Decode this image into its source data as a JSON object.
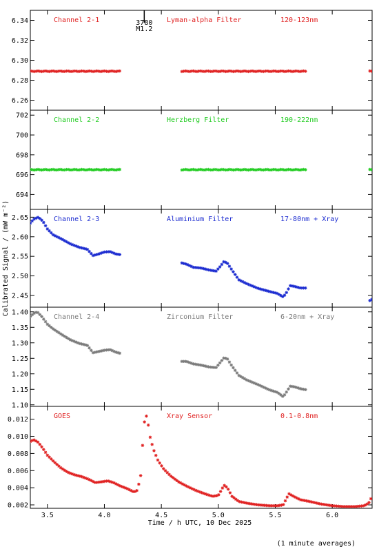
{
  "ylabel": "Calibrated Signal / (mW m⁻²)",
  "xlabel": "Time / h UTC, 10 Dec 2025",
  "footer_note": "(1 minute averages)",
  "flare_marker": {
    "number": "3780",
    "class": "M1.2",
    "time": 4.35
  },
  "xlim": [
    3.35,
    6.35
  ],
  "x_ticks": [
    {
      "v": 3.5,
      "label": "3.5"
    },
    {
      "v": 4.0,
      "label": "4.0"
    },
    {
      "v": 4.5,
      "label": "4.5"
    },
    {
      "v": 5.0,
      "label": "5.0"
    },
    {
      "v": 5.5,
      "label": "5.5"
    },
    {
      "v": 6.0,
      "label": "6.0"
    }
  ],
  "chart_data": [
    {
      "type": "scatter",
      "channel": "Channel 2-1",
      "filter": "Lyman-alpha Filter",
      "band": "120-123nm",
      "color": "#e02020",
      "ylim": [
        6.25,
        6.35
      ],
      "y_ticks": [
        "6.26",
        "6.28",
        "6.30",
        "6.32",
        "6.34"
      ],
      "y_tick_values": [
        6.26,
        6.28,
        6.3,
        6.32,
        6.34
      ],
      "points": [
        [
          3.35,
          6.289
        ],
        [
          4.15,
          6.289
        ],
        [
          4.68,
          6.289
        ],
        [
          5.78,
          6.289
        ],
        [
          6.35,
          6.289
        ]
      ],
      "segments": [
        [
          3.35,
          4.15
        ],
        [
          4.68,
          5.78
        ],
        [
          6.33,
          6.35
        ]
      ],
      "shape": "flat"
    },
    {
      "type": "scatter",
      "channel": "Channel 2-2",
      "filter": "Herzberg Filter",
      "band": "190-222nm",
      "color": "#22cc22",
      "ylim": [
        692.5,
        702.5
      ],
      "y_ticks": [
        "694",
        "696",
        "698",
        "700",
        "702"
      ],
      "y_tick_values": [
        694,
        696,
        698,
        700,
        702
      ],
      "points": [
        [
          3.35,
          696.5
        ],
        [
          4.15,
          696.5
        ],
        [
          4.68,
          696.5
        ],
        [
          5.78,
          696.5
        ],
        [
          6.35,
          696.5
        ]
      ],
      "segments": [
        [
          3.35,
          4.15
        ],
        [
          4.68,
          5.78
        ],
        [
          6.33,
          6.35
        ]
      ],
      "shape": "flat"
    },
    {
      "type": "scatter",
      "channel": "Channel 2-3",
      "filter": "Aluminium Filter",
      "band": "17-80nm + Xray",
      "color": "#1a2ad0",
      "ylim": [
        2.42,
        2.67
      ],
      "y_ticks": [
        "2.45",
        "2.50",
        "2.55",
        "2.60",
        "2.65"
      ],
      "y_tick_values": [
        2.45,
        2.5,
        2.55,
        2.6,
        2.65
      ],
      "points": [
        [
          3.35,
          2.635
        ],
        [
          3.38,
          2.645
        ],
        [
          3.42,
          2.65
        ],
        [
          3.46,
          2.64
        ],
        [
          3.5,
          2.62
        ],
        [
          3.55,
          2.605
        ],
        [
          3.62,
          2.595
        ],
        [
          3.7,
          2.582
        ],
        [
          3.78,
          2.573
        ],
        [
          3.85,
          2.568
        ],
        [
          3.9,
          2.552
        ],
        [
          3.95,
          2.556
        ],
        [
          4.0,
          2.561
        ],
        [
          4.05,
          2.562
        ],
        [
          4.1,
          2.556
        ],
        [
          4.15,
          2.554
        ],
        [
          4.68,
          2.533
        ],
        [
          4.72,
          2.53
        ],
        [
          4.78,
          2.522
        ],
        [
          4.85,
          2.52
        ],
        [
          4.92,
          2.515
        ],
        [
          4.98,
          2.512
        ],
        [
          5.02,
          2.525
        ],
        [
          5.05,
          2.537
        ],
        [
          5.08,
          2.532
        ],
        [
          5.12,
          2.515
        ],
        [
          5.18,
          2.49
        ],
        [
          5.25,
          2.48
        ],
        [
          5.35,
          2.468
        ],
        [
          5.45,
          2.46
        ],
        [
          5.52,
          2.455
        ],
        [
          5.57,
          2.446
        ],
        [
          5.6,
          2.458
        ],
        [
          5.63,
          2.475
        ],
        [
          5.67,
          2.473
        ],
        [
          5.72,
          2.469
        ],
        [
          5.78,
          2.469
        ],
        [
          6.33,
          2.437
        ],
        [
          6.35,
          2.44
        ]
      ]
    },
    {
      "type": "scatter",
      "channel": "Channel 2-4",
      "filter": "Zirconium Filter",
      "band": "6-20nm + Xray",
      "color": "#7a7a7a",
      "ylim": [
        1.095,
        1.415
      ],
      "y_ticks": [
        "1.10",
        "1.15",
        "1.20",
        "1.25",
        "1.30",
        "1.35",
        "1.40"
      ],
      "y_tick_values": [
        1.1,
        1.15,
        1.2,
        1.25,
        1.3,
        1.35,
        1.4
      ],
      "points": [
        [
          3.35,
          1.385
        ],
        [
          3.38,
          1.395
        ],
        [
          3.41,
          1.4
        ],
        [
          3.45,
          1.385
        ],
        [
          3.5,
          1.36
        ],
        [
          3.55,
          1.345
        ],
        [
          3.62,
          1.328
        ],
        [
          3.7,
          1.31
        ],
        [
          3.78,
          1.298
        ],
        [
          3.85,
          1.292
        ],
        [
          3.9,
          1.268
        ],
        [
          3.95,
          1.272
        ],
        [
          4.0,
          1.276
        ],
        [
          4.05,
          1.278
        ],
        [
          4.1,
          1.27
        ],
        [
          4.15,
          1.265
        ],
        [
          4.68,
          1.24
        ],
        [
          4.72,
          1.24
        ],
        [
          4.78,
          1.232
        ],
        [
          4.85,
          1.228
        ],
        [
          4.92,
          1.222
        ],
        [
          4.98,
          1.22
        ],
        [
          5.02,
          1.238
        ],
        [
          5.05,
          1.252
        ],
        [
          5.08,
          1.248
        ],
        [
          5.12,
          1.225
        ],
        [
          5.18,
          1.195
        ],
        [
          5.25,
          1.18
        ],
        [
          5.35,
          1.165
        ],
        [
          5.45,
          1.148
        ],
        [
          5.52,
          1.14
        ],
        [
          5.57,
          1.126
        ],
        [
          5.6,
          1.142
        ],
        [
          5.63,
          1.16
        ],
        [
          5.67,
          1.158
        ],
        [
          5.72,
          1.152
        ],
        [
          5.78,
          1.148
        ]
      ]
    },
    {
      "type": "scatter",
      "channel": "GOES",
      "filter": "Xray Sensor",
      "band": "0.1-0.8nm",
      "color": "#e02020",
      "ylim": [
        0.0016,
        0.0135
      ],
      "y_ticks": [
        "0.002",
        "0.004",
        "0.006",
        "0.008",
        "0.010",
        "0.012"
      ],
      "y_tick_values": [
        0.002,
        0.004,
        0.006,
        0.008,
        0.01,
        0.012
      ],
      "points": [
        [
          3.35,
          0.0094
        ],
        [
          3.38,
          0.0096
        ],
        [
          3.42,
          0.0093
        ],
        [
          3.46,
          0.0086
        ],
        [
          3.5,
          0.0078
        ],
        [
          3.56,
          0.007
        ],
        [
          3.62,
          0.0063
        ],
        [
          3.68,
          0.0058
        ],
        [
          3.74,
          0.0055
        ],
        [
          3.8,
          0.0053
        ],
        [
          3.86,
          0.005
        ],
        [
          3.92,
          0.0046
        ],
        [
          3.98,
          0.0047
        ],
        [
          4.03,
          0.0048
        ],
        [
          4.08,
          0.0046
        ],
        [
          4.14,
          0.0042
        ],
        [
          4.2,
          0.0039
        ],
        [
          4.26,
          0.0035
        ],
        [
          4.29,
          0.0037
        ],
        [
          4.32,
          0.0055
        ],
        [
          4.34,
          0.01
        ],
        [
          4.36,
          0.0128
        ],
        [
          4.38,
          0.0118
        ],
        [
          4.4,
          0.01
        ],
        [
          4.43,
          0.0085
        ],
        [
          4.47,
          0.0072
        ],
        [
          4.52,
          0.0062
        ],
        [
          4.58,
          0.0054
        ],
        [
          4.65,
          0.0047
        ],
        [
          4.72,
          0.0042
        ],
        [
          4.8,
          0.0037
        ],
        [
          4.88,
          0.0033
        ],
        [
          4.95,
          0.003
        ],
        [
          5.0,
          0.0031
        ],
        [
          5.03,
          0.0038
        ],
        [
          5.05,
          0.0043
        ],
        [
          5.08,
          0.004
        ],
        [
          5.12,
          0.003
        ],
        [
          5.18,
          0.0024
        ],
        [
          5.25,
          0.0022
        ],
        [
          5.35,
          0.002
        ],
        [
          5.45,
          0.0019
        ],
        [
          5.52,
          0.0019
        ],
        [
          5.57,
          0.002
        ],
        [
          5.6,
          0.0028
        ],
        [
          5.62,
          0.0033
        ],
        [
          5.66,
          0.003
        ],
        [
          5.72,
          0.0026
        ],
        [
          5.8,
          0.0024
        ],
        [
          5.9,
          0.0021
        ],
        [
          6.0,
          0.0019
        ],
        [
          6.1,
          0.0018
        ],
        [
          6.2,
          0.0018
        ],
        [
          6.28,
          0.0019
        ],
        [
          6.32,
          0.0022
        ],
        [
          6.35,
          0.003
        ]
      ]
    }
  ]
}
